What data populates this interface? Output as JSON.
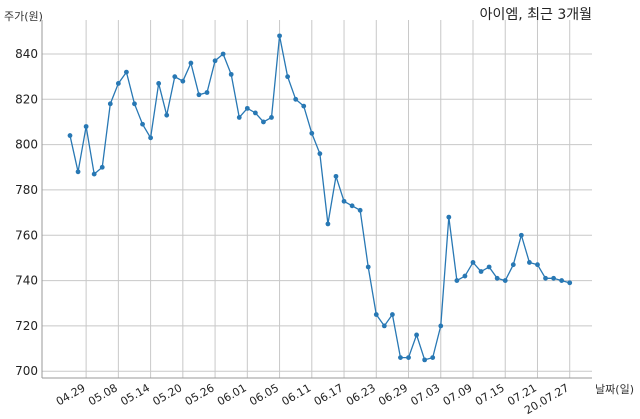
{
  "chart_data": {
    "type": "line",
    "title": "아이엠, 최근 3개월",
    "ylabel": "주가(원)",
    "xlabel": "날짜(일)",
    "ylim": [
      697,
      855
    ],
    "yticks": [
      700,
      720,
      740,
      760,
      780,
      800,
      820,
      840
    ],
    "xtick_labels": [
      "04.29",
      "05.08",
      "05.14",
      "05.20",
      "05.26",
      "06.01",
      "06.05",
      "06.11",
      "06.17",
      "06.23",
      "06.29",
      "07.03",
      "07.09",
      "07.15",
      "07.21",
      "20.07.27"
    ],
    "xtick_index": [
      2,
      6,
      10,
      14,
      18,
      22,
      26,
      30,
      34,
      38,
      42,
      46,
      50,
      54,
      58,
      62
    ],
    "series": [
      {
        "color": "#2878b4",
        "values": [
          804,
          788,
          808,
          787,
          790,
          818,
          827,
          832,
          818,
          809,
          803,
          827,
          813,
          830,
          828,
          836,
          822,
          823,
          837,
          840,
          831,
          812,
          816,
          814,
          810,
          812,
          848,
          830,
          820,
          817,
          805,
          796,
          765,
          786,
          775,
          773,
          771,
          746,
          725,
          720,
          725,
          706,
          706,
          716,
          705,
          706,
          720,
          768,
          740,
          742,
          748,
          744,
          746,
          741,
          740,
          747,
          760,
          748,
          747,
          741,
          741,
          740,
          739
        ]
      }
    ],
    "grid": true
  }
}
